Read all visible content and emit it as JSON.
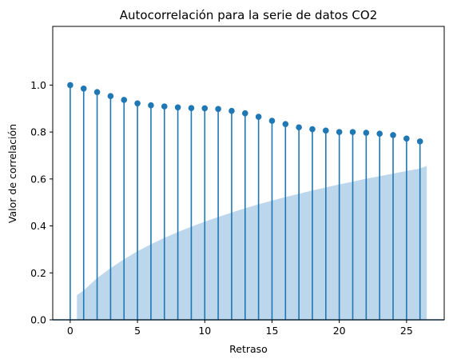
{
  "chart_data": {
    "type": "stem",
    "title": "Autocorrelación para la serie de datos CO2",
    "xlabel": "Retraso",
    "ylabel": "Valor de correlación",
    "xlim": [
      -1.3,
      27.8
    ],
    "ylim": [
      0,
      1.25
    ],
    "xticks": [
      0,
      5,
      10,
      15,
      20,
      25
    ],
    "yticks": [
      0.0,
      0.2,
      0.4,
      0.6,
      0.8,
      1.0
    ],
    "ytick_labels": [
      "0.0",
      "0.2",
      "0.4",
      "0.6",
      "0.8",
      "1.0"
    ],
    "grid": false,
    "colors": {
      "stem": "#1f77b4",
      "confidence_band": "#bcd6ec"
    },
    "series": [
      {
        "lags": [
          0,
          1,
          2,
          3,
          4,
          5,
          6,
          7,
          8,
          9,
          10,
          11,
          12,
          13,
          14,
          15,
          16,
          17,
          18,
          19,
          20,
          21,
          22,
          23,
          24,
          25,
          26
        ],
        "values": [
          1.0,
          0.985,
          0.97,
          0.953,
          0.937,
          0.922,
          0.914,
          0.909,
          0.905,
          0.902,
          0.901,
          0.898,
          0.89,
          0.88,
          0.865,
          0.848,
          0.834,
          0.82,
          0.812,
          0.806,
          0.8,
          0.8,
          0.797,
          0.793,
          0.787,
          0.772,
          0.76
        ]
      }
    ],
    "confidence_band": {
      "x": [
        0.5,
        1,
        2,
        3,
        4,
        5,
        6,
        7,
        8,
        9,
        10,
        11,
        12,
        13,
        14,
        15,
        16,
        17,
        18,
        19,
        20,
        21,
        22,
        23,
        24,
        25,
        26,
        26.5
      ],
      "upper": [
        0.105,
        0.125,
        0.178,
        0.22,
        0.258,
        0.292,
        0.322,
        0.349,
        0.374,
        0.397,
        0.418,
        0.438,
        0.457,
        0.475,
        0.492,
        0.508,
        0.523,
        0.537,
        0.551,
        0.564,
        0.577,
        0.589,
        0.601,
        0.612,
        0.623,
        0.634,
        0.644,
        0.656
      ]
    }
  }
}
